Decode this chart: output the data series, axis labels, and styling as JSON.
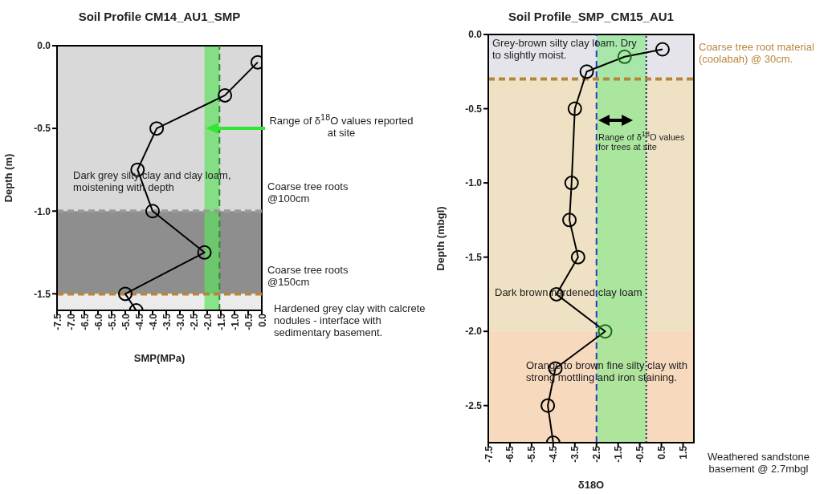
{
  "chart_data": [
    {
      "type": "line",
      "title": "Soil Profile CM14_AU1_SMP",
      "xlabel": "SMP(MPa)",
      "ylabel": "Depth (m)",
      "series": [
        {
          "color": "#000000",
          "x": [
            -0.15,
            -1.35,
            -3.85,
            -4.55,
            -4.0,
            -2.1,
            -5.0,
            -4.6
          ],
          "values": [
            -0.1,
            -0.3,
            -0.5,
            -0.75,
            -1.0,
            -1.25,
            -1.5,
            -1.6
          ]
        }
      ],
      "xlim": [
        -7.5,
        0
      ],
      "xticks": [
        -7.5,
        {
          "value": -7,
          "label": "-7.0"
        },
        -6.5,
        {
          "value": -6,
          "label": "-6.0"
        },
        -5.5,
        {
          "value": -5,
          "label": "-5.0"
        },
        -4.5,
        {
          "value": -4,
          "label": "-4.0"
        },
        -3.5,
        {
          "value": -3,
          "label": "-3.0"
        },
        -2.5,
        {
          "value": -2,
          "label": "-2.0"
        },
        -1.5,
        {
          "value": -1,
          "label": "-1.0"
        },
        -0.5,
        {
          "value": 0,
          "label": "0.0"
        }
      ],
      "ylim": [
        -1.6,
        0
      ],
      "yticks": [
        {
          "value": 0,
          "label": "0.0"
        },
        -0.5,
        {
          "value": -1,
          "label": "-1.0"
        },
        -1.5
      ],
      "marker": "circle",
      "line_style": "solid",
      "bands": [
        {
          "axis": "y",
          "from": 0,
          "to": -1,
          "label": "Dark grey silty clay and clay loam, moistening with depth",
          "color": "#d9d9d9"
        },
        {
          "axis": "y",
          "from": -1,
          "to": -1.5,
          "color": "#8e8e8e"
        },
        {
          "axis": "y",
          "from": -1.5,
          "to": -1.6,
          "label": "Hardened grey clay with calcrete nodules - interface with sedimentary basement.",
          "color": "#ebebeb"
        },
        {
          "axis": "x",
          "from": -2.1,
          "to": -1.55,
          "label": "Range of δ$^{18}$O values reported at site",
          "color": "#5fe05f"
        }
      ],
      "ref_lines": [
        {
          "axis": "x",
          "value": -1.55,
          "color": "#2e8b2e",
          "line_style": "dashed"
        },
        {
          "axis": "y",
          "value": -1,
          "label": "Coarse tree roots @100cm",
          "color": "#9a9a9a",
          "line_style": "dashed"
        },
        {
          "axis": "y",
          "value": -1.5,
          "label": "Coarse tree roots @150cm",
          "color": "#b8863b",
          "line_style": "dashed"
        }
      ]
    },
    {
      "type": "line",
      "title": "Soil Profile_SMP_CM15_AU1",
      "xlabel": "δ18O",
      "ylabel": "Depth (mbgl)",
      "series": [
        {
          "color": "#000000",
          "x": [
            0.55,
            -1.2,
            -2.95,
            -3.5,
            -3.65,
            -3.75,
            -3.35,
            -4.35,
            -2.1,
            -4.4,
            -4.75,
            -4.5
          ],
          "values": [
            -0.1,
            -0.15,
            -0.25,
            -0.5,
            -1.0,
            -1.25,
            -1.5,
            -1.75,
            -2.0,
            -2.25,
            -2.5,
            -2.75
          ],
          "colors": [
            "#000000",
            "#1d6b1d",
            "#000000",
            "#000000",
            "#000000",
            "#000000",
            "#000000",
            "#000000",
            "#1d6b1d",
            "#000000",
            "#000000",
            "#000000"
          ]
        }
      ],
      "xlim": [
        -7.5,
        2
      ],
      "xticks": [
        -7.5,
        -6.5,
        -5.5,
        -4.5,
        -3.5,
        -2.5,
        -1.5,
        -0.5,
        0.5,
        1.5
      ],
      "ylim": [
        -2.75,
        0
      ],
      "yticks": [
        {
          "value": 0,
          "label": "0.0"
        },
        -0.5,
        {
          "value": -1,
          "label": "-1.0"
        },
        -1.5,
        {
          "value": -2,
          "label": "-2.0"
        },
        -2.5
      ],
      "marker": "circle",
      "line_style": "solid",
      "bands": [
        {
          "axis": "y",
          "from": 0,
          "to": -0.3,
          "label": "Grey-brown silty clay loam. Dry to slightly moist.",
          "color": "#e4e4ea"
        },
        {
          "axis": "y",
          "from": -0.3,
          "to": -2,
          "label": "Dark brown hardened clay loam",
          "color": "#efe2c4"
        },
        {
          "axis": "y",
          "from": -2,
          "to": -2.75,
          "label": "Orange to brown fine silty clay with strong mottling and iron staining.",
          "color": "#f7d9bd"
        },
        {
          "axis": "x",
          "from": -2.5,
          "to": -0.2,
          "label": "Range of δ$^{18}$O values for trees at site",
          "color": "#8ee88e"
        }
      ],
      "ref_lines": [
        {
          "axis": "x",
          "value": -2.5,
          "color": "#1f3fbf",
          "line_style": "dashed"
        },
        {
          "axis": "x",
          "value": -0.2,
          "color": "#1a2a5a",
          "line_style": "dotted"
        },
        {
          "axis": "y",
          "value": -0.3,
          "label": "Coarse tree root material (coolabah) @ 30cm.",
          "color": "#b8863b",
          "line_style": "dashed"
        }
      ],
      "annotations": [
        "Weathered sandstone basement @ 2.7mbgl"
      ]
    }
  ]
}
